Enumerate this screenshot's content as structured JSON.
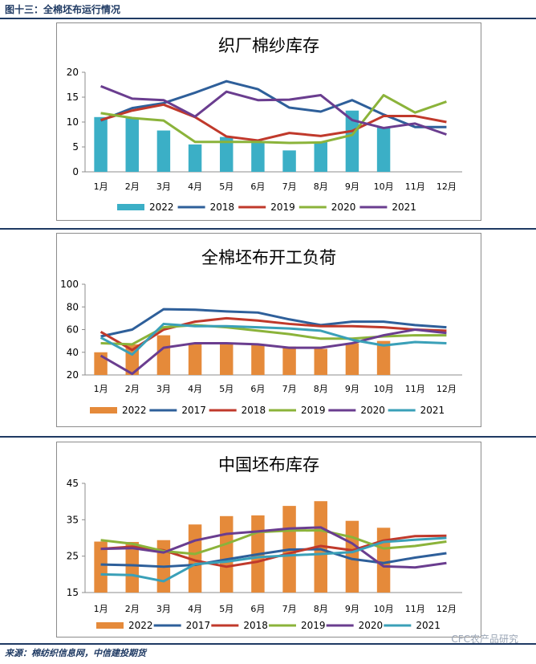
{
  "figure_title": "图十三：全棉坯布运行情况",
  "source": "来源：棉纺织信息网，中信建投期货",
  "watermark": "CFC农产品研究",
  "colors": {
    "2017": "#2e5f9a",
    "2018": "#c0392b",
    "2019": "#8bb33a",
    "2020": "#6a3d8f",
    "2021": "#3aa0b8",
    "bar_teal": "#3bafc6",
    "bar_orange": "#e58a3a"
  },
  "chart_data": [
    {
      "type": "bar",
      "title": "织厂棉纱库存",
      "categories": [
        "1月",
        "2月",
        "3月",
        "4月",
        "5月",
        "6月",
        "7月",
        "8月",
        "9月",
        "10月",
        "11月",
        "12月"
      ],
      "ylim": [
        0,
        20
      ],
      "yticks": [
        0,
        5,
        10,
        15,
        20
      ],
      "bar_series": {
        "name": "2022",
        "color": "#3bafc6",
        "values": [
          11,
          10.8,
          8.3,
          5.5,
          7,
          6,
          4.3,
          6,
          12.3,
          9,
          null,
          null
        ]
      },
      "line_series": [
        {
          "name": "2018",
          "color": "#2e5f9a",
          "values": [
            10.3,
            12.8,
            13.8,
            15.9,
            18.2,
            16.6,
            12.9,
            12.1,
            14.4,
            11.5,
            9,
            9
          ]
        },
        {
          "name": "2019",
          "color": "#c0392b",
          "values": [
            10.4,
            12.3,
            13.5,
            11,
            7.1,
            6.3,
            7.8,
            7.2,
            8.2,
            11.2,
            11.2,
            10
          ]
        },
        {
          "name": "2020",
          "color": "#8bb33a",
          "values": [
            11.8,
            10.8,
            10.3,
            6,
            6,
            6,
            5.8,
            5.9,
            7.4,
            15.4,
            11.9,
            14.1
          ]
        },
        {
          "name": "2021",
          "color": "#6a3d8f",
          "values": [
            17.2,
            14.7,
            14.4,
            11.1,
            16.1,
            14.4,
            14.5,
            15.4,
            10.4,
            8.8,
            9.7,
            7.5
          ]
        }
      ]
    },
    {
      "type": "bar",
      "title": "全棉坯布开工负荷",
      "categories": [
        "1月",
        "2月",
        "3月",
        "4月",
        "5月",
        "6月",
        "7月",
        "8月",
        "9月",
        "10月",
        "11月",
        "12月"
      ],
      "ylim": [
        20,
        100
      ],
      "yticks": [
        20,
        40,
        60,
        80,
        100
      ],
      "bar_series": {
        "name": "2022",
        "color": "#e58a3a",
        "values": [
          40,
          47,
          55,
          48,
          47,
          47,
          45,
          43,
          48,
          50,
          null,
          null
        ]
      },
      "line_series": [
        {
          "name": "2017",
          "color": "#2e5f9a",
          "values": [
            54,
            60,
            78,
            77.5,
            76,
            75,
            69,
            64,
            67,
            67,
            64,
            62
          ]
        },
        {
          "name": "2018",
          "color": "#c0392b",
          "values": [
            58,
            42,
            60,
            67,
            70,
            68,
            65,
            63,
            63,
            62,
            60,
            59
          ]
        },
        {
          "name": "2019",
          "color": "#8bb33a",
          "values": [
            48,
            47,
            62,
            64,
            62,
            59,
            56,
            52,
            52,
            54,
            55,
            55
          ]
        },
        {
          "name": "2020",
          "color": "#6a3d8f",
          "values": [
            37,
            21,
            44,
            48,
            48,
            47,
            44,
            44,
            48,
            55,
            60,
            57
          ]
        },
        {
          "name": "2021",
          "color": "#3aa0b8",
          "values": [
            53,
            38,
            65,
            63,
            63,
            62,
            61,
            59,
            51,
            46,
            49,
            48
          ]
        }
      ]
    },
    {
      "type": "bar",
      "title": "中国坯布库存",
      "categories": [
        "1月",
        "2月",
        "3月",
        "4月",
        "5月",
        "6月",
        "7月",
        "8月",
        "9月",
        "10月",
        "11月",
        "12月"
      ],
      "ylim": [
        15,
        45
      ],
      "yticks": [
        15,
        25,
        35,
        45
      ],
      "bar_series": {
        "name": "2022",
        "color": "#e58a3a",
        "values": [
          29,
          28.9,
          29.4,
          33.7,
          36,
          36.2,
          38.8,
          40.1,
          34.7,
          32.8,
          null,
          null
        ]
      },
      "line_series": [
        {
          "name": "2017",
          "color": "#2e5f9a",
          "values": [
            22.7,
            22.5,
            22.1,
            22.6,
            24.1,
            25.5,
            26.8,
            26.9,
            24.2,
            23.1,
            24.6,
            25.8
          ]
        },
        {
          "name": "2018",
          "color": "#c0392b",
          "values": [
            27,
            27.6,
            26.6,
            23.8,
            22.1,
            23.5,
            25.8,
            27.8,
            26.6,
            29.3,
            30.5,
            30.6
          ]
        },
        {
          "name": "2019",
          "color": "#8bb33a",
          "values": [
            29.4,
            28.4,
            26.4,
            25.6,
            28.4,
            31.6,
            32,
            32.1,
            30.2,
            27.1,
            27.8,
            29
          ]
        },
        {
          "name": "2020",
          "color": "#6a3d8f",
          "values": [
            27,
            27.2,
            26,
            29.3,
            31.1,
            31.8,
            32.6,
            32.9,
            28.5,
            22.2,
            21.9,
            23.1
          ]
        },
        {
          "name": "2021",
          "color": "#3aa0b8",
          "values": [
            20,
            19.8,
            18.1,
            22.8,
            23.5,
            24.7,
            25.2,
            25.6,
            26.1,
            28.9,
            29.5,
            30
          ]
        }
      ]
    }
  ]
}
